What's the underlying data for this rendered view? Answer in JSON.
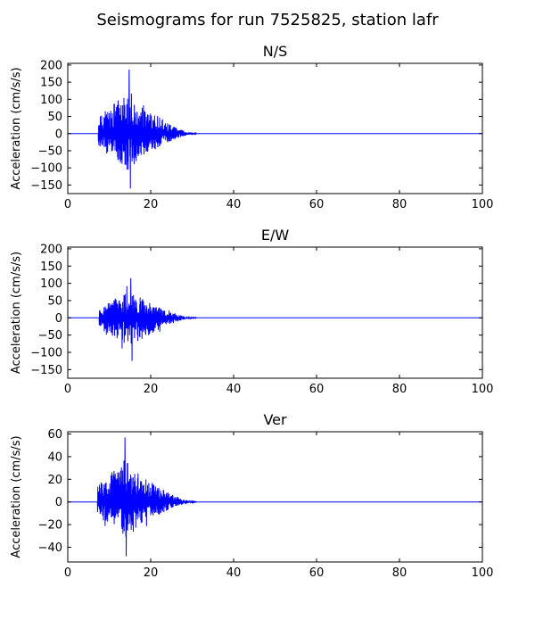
{
  "figure": {
    "title": "Seismograms for run 7525825, station lafr"
  },
  "chart_data": [
    {
      "type": "line",
      "title": "N/S",
      "ylabel": "Acceleration (cm/s/s)",
      "xlabel": "",
      "xlim": [
        0,
        100
      ],
      "ylim": [
        -175,
        205
      ],
      "xticks": [
        0,
        20,
        40,
        60,
        80,
        100
      ],
      "yticks": [
        -150,
        -100,
        -50,
        0,
        50,
        100,
        150,
        200
      ],
      "grid": false,
      "line_color": "#0000ff",
      "signal": {
        "onset": 7.4,
        "peak_time": 14.8,
        "decay_end": 31,
        "peak_pos": 187,
        "peak_neg": -160
      }
    },
    {
      "type": "line",
      "title": "E/W",
      "ylabel": "Acceleration (cm/s/s)",
      "xlabel": "",
      "xlim": [
        0,
        100
      ],
      "ylim": [
        -175,
        205
      ],
      "xticks": [
        0,
        20,
        40,
        60,
        80,
        100
      ],
      "yticks": [
        -150,
        -100,
        -50,
        0,
        50,
        100,
        150,
        200
      ],
      "grid": false,
      "line_color": "#0000ff",
      "signal": {
        "onset": 7.6,
        "peak_time": 15.2,
        "decay_end": 31,
        "peak_pos": 115,
        "peak_neg": -125
      }
    },
    {
      "type": "line",
      "title": "Ver",
      "ylabel": "Acceleration (cm/s/s)",
      "xlabel": "",
      "xlim": [
        0,
        100
      ],
      "ylim": [
        -53,
        62
      ],
      "xticks": [
        0,
        20,
        40,
        60,
        80,
        100
      ],
      "yticks": [
        -40,
        -20,
        0,
        20,
        40,
        60
      ],
      "grid": false,
      "line_color": "#0000ff",
      "signal": {
        "onset": 7.2,
        "peak_time": 13.8,
        "decay_end": 31,
        "peak_pos": 57,
        "peak_neg": -48
      }
    }
  ]
}
